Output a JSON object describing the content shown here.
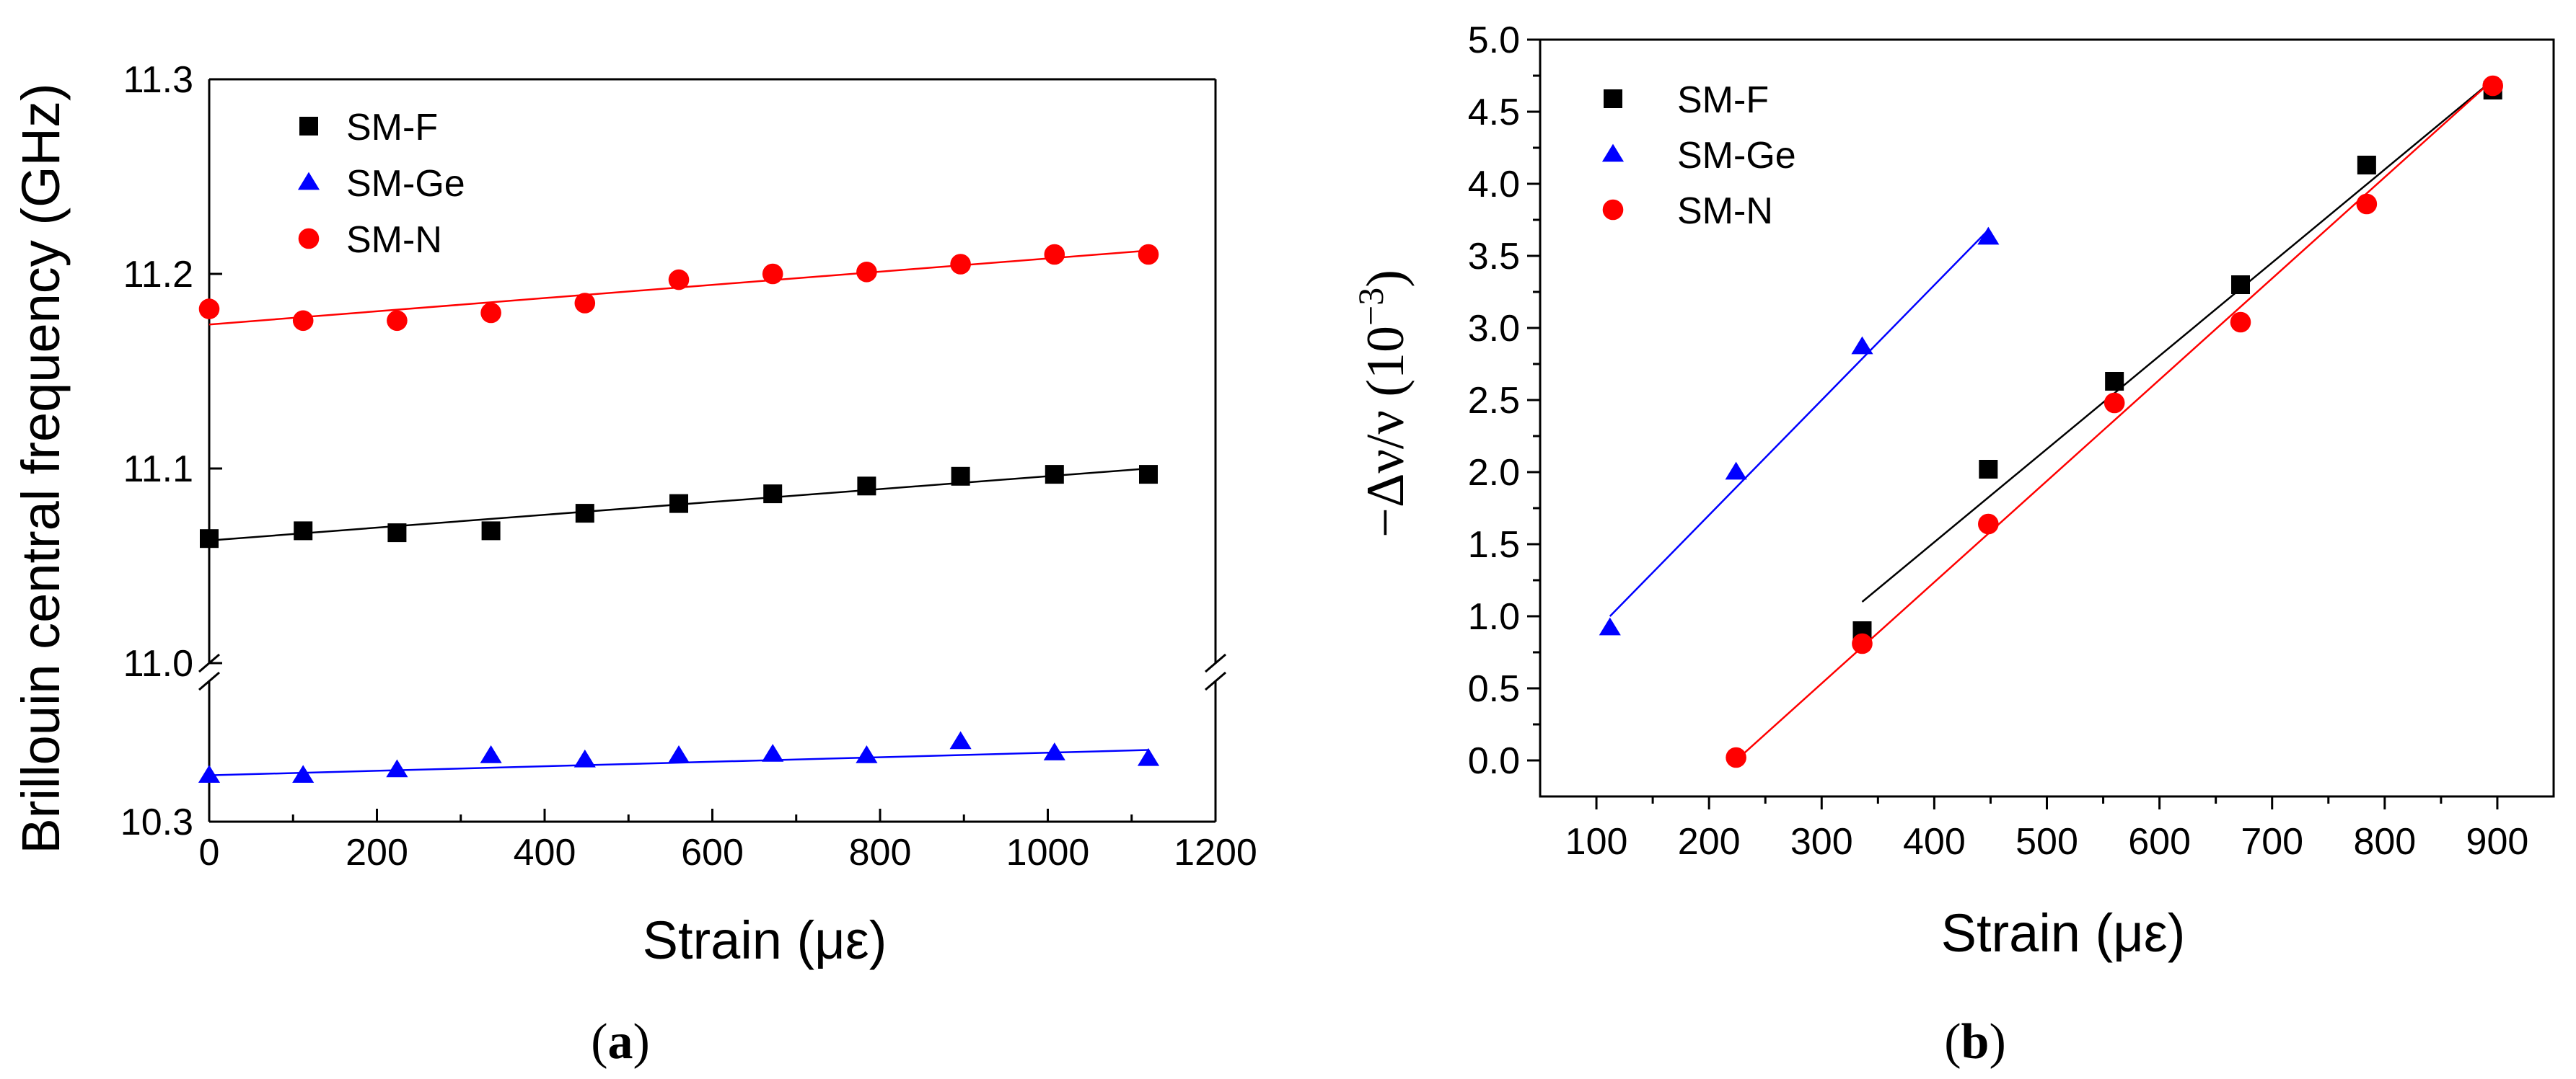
{
  "chart_data": [
    {
      "panel": "a",
      "caption": "(a)",
      "type": "scatter",
      "xlabel": "Strain (με)",
      "ylabel": "Brillouin central frequency (GHz)",
      "xlim": [
        0,
        1200
      ],
      "xticks": [
        0,
        200,
        400,
        600,
        800,
        1000,
        1200
      ],
      "y_axis_break": true,
      "ylim_upper": [
        11.0,
        11.3
      ],
      "yticks_upper": [
        11.0,
        11.1,
        11.2,
        11.3
      ],
      "ylim_lower": [
        10.3,
        10.4
      ],
      "yticks_lower": [
        10.3
      ],
      "legend_position": "top-left",
      "series": [
        {
          "name": "SM-F",
          "marker": "square",
          "color": "#000000",
          "axis": "upper",
          "x": [
            0,
            112,
            224,
            336,
            448,
            560,
            672,
            784,
            896,
            1008,
            1120
          ],
          "y": [
            11.064,
            11.068,
            11.067,
            11.068,
            11.077,
            11.082,
            11.087,
            11.091,
            11.096,
            11.097,
            11.097
          ],
          "fit": [
            [
              0,
              11.063
            ],
            [
              1120,
              11.1
            ]
          ]
        },
        {
          "name": "SM-Ge",
          "marker": "triangle",
          "color": "#0000ff",
          "axis": "lower",
          "x": [
            0,
            112,
            224,
            336,
            448,
            560,
            672,
            784,
            896,
            1008,
            1120
          ],
          "y": [
            10.333,
            10.333,
            10.337,
            10.347,
            10.344,
            10.347,
            10.348,
            10.347,
            10.357,
            10.349,
            10.345
          ],
          "fit": [
            [
              0,
              10.333
            ],
            [
              1120,
              10.351
            ]
          ]
        },
        {
          "name": "SM-N",
          "marker": "circle",
          "color": "#ff0000",
          "axis": "upper",
          "x": [
            0,
            112,
            224,
            336,
            448,
            560,
            672,
            784,
            896,
            1008,
            1120
          ],
          "y": [
            11.182,
            11.176,
            11.176,
            11.18,
            11.185,
            11.197,
            11.2,
            11.201,
            11.205,
            11.21,
            11.21
          ],
          "fit": [
            [
              0,
              11.174
            ],
            [
              1120,
              11.212
            ]
          ]
        }
      ]
    },
    {
      "panel": "b",
      "caption": "(b)",
      "type": "scatter",
      "xlabel": "Strain (με)",
      "ylabel_main": "−Δν/ν (10",
      "ylabel_exp": "−3",
      "ylabel_close": ")",
      "xlim": [
        50,
        950
      ],
      "xticks": [
        100,
        200,
        300,
        400,
        500,
        600,
        700,
        800,
        900
      ],
      "ylim": [
        -0.25,
        5.0
      ],
      "yticks": [
        0.0,
        0.5,
        1.0,
        1.5,
        2.0,
        2.5,
        3.0,
        3.5,
        4.0,
        4.5,
        5.0
      ],
      "legend_position": "top-left",
      "series": [
        {
          "name": "SM-F",
          "marker": "square",
          "color": "#000000",
          "x": [
            336,
            448,
            560,
            672,
            784,
            896
          ],
          "y": [
            0.9,
            2.02,
            2.63,
            3.3,
            4.13,
            4.65
          ],
          "fit": [
            [
              336,
              1.1
            ],
            [
              896,
              4.72
            ]
          ]
        },
        {
          "name": "SM-Ge",
          "marker": "triangle",
          "color": "#0000ff",
          "x": [
            112,
            224,
            336,
            448
          ],
          "y": [
            0.92,
            2.0,
            2.87,
            3.63
          ],
          "fit": [
            [
              112,
              1.0
            ],
            [
              448,
              3.68
            ]
          ]
        },
        {
          "name": "SM-N",
          "marker": "circle",
          "color": "#ff0000",
          "x": [
            224,
            336,
            448,
            560,
            672,
            784,
            896
          ],
          "y": [
            0.02,
            0.81,
            1.64,
            2.48,
            3.04,
            3.86,
            4.68
          ],
          "fit": [
            [
              224,
              0.0
            ],
            [
              896,
              4.72
            ]
          ]
        }
      ]
    }
  ]
}
